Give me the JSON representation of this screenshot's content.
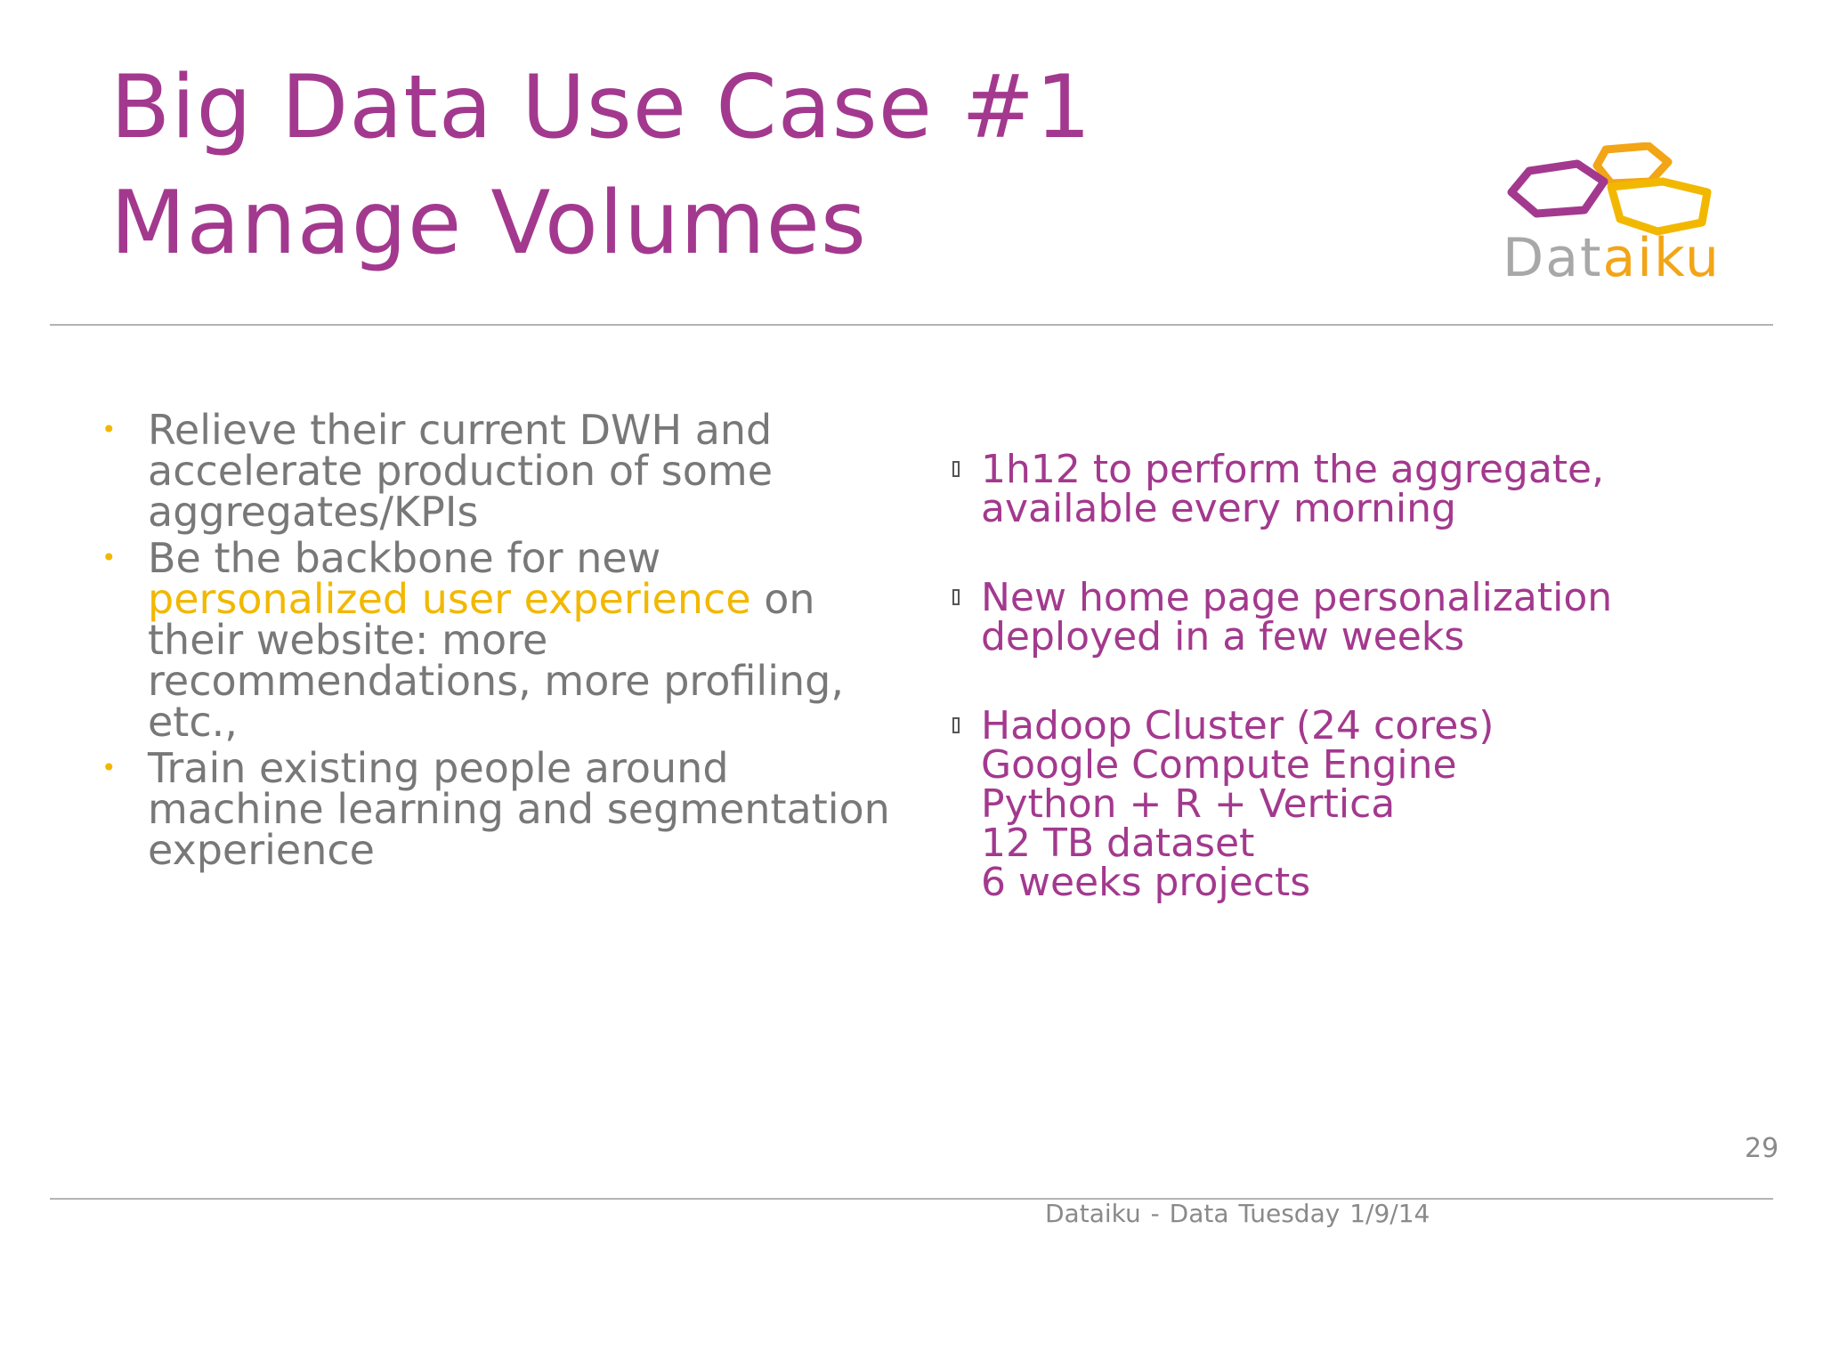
{
  "title": {
    "line1": "Big Data Use Case #1",
    "line2": "Manage Volumes"
  },
  "logo": {
    "text_part1": "Dat",
    "text_part2": "aiku",
    "icon": "hexagon-logo-icon",
    "colors": [
      "#a3398e",
      "#f2a516",
      "#a8a8a8"
    ]
  },
  "left_bullets": [
    {
      "text": "Relieve their current DWH and accelerate production of some aggregates/KPIs"
    },
    {
      "before": "Be the backbone for new ",
      "highlight": "personalized user experience",
      "after": " on their website: more recommendations, more profiling, etc.,"
    },
    {
      "text": "Train existing people around machine learning and segmentation experience"
    }
  ],
  "right_items": [
    {
      "lines": [
        "1h12 to perform the aggregate,",
        "available every morning"
      ]
    },
    {
      "lines": [
        "New home page personalization",
        "deployed in a few weeks"
      ]
    },
    {
      "lines": [
        "Hadoop Cluster (24 cores)",
        "Google Compute Engine",
        "Python + R + Vertica",
        "12 TB dataset",
        "6 weeks projects"
      ]
    }
  ],
  "page_number": "29",
  "footer": "Dataiku - Data Tuesday  1/9/14",
  "colors": {
    "title": "#a3398e",
    "body_text": "#787878",
    "highlight": "#f2b800",
    "right_text": "#a3398e"
  }
}
